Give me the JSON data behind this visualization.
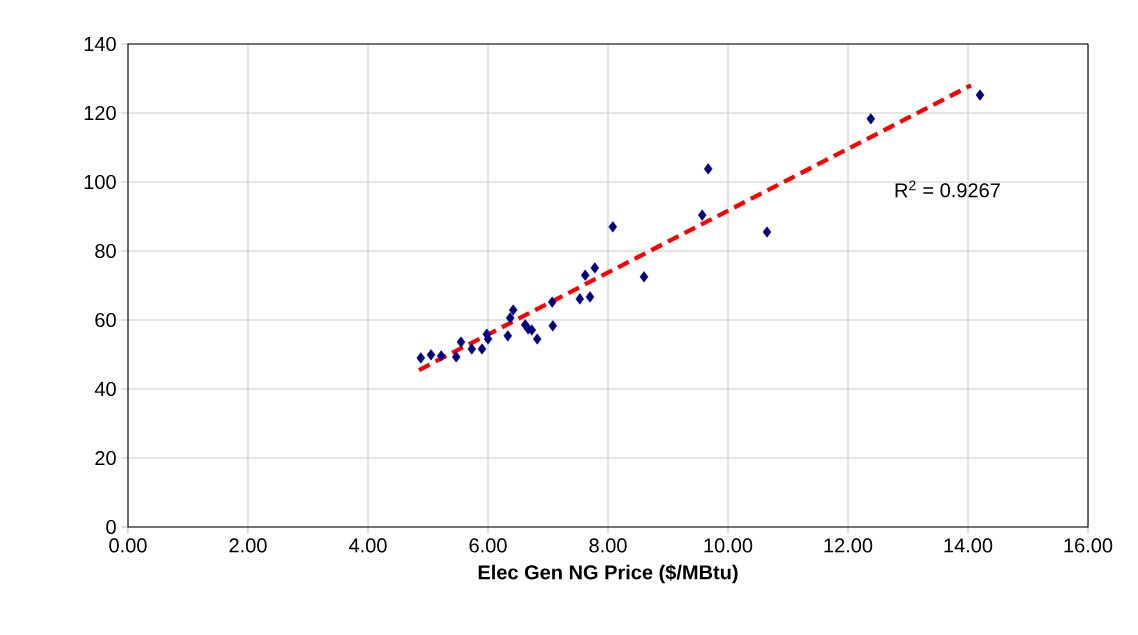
{
  "chart_data": {
    "type": "scatter",
    "xlabel": "Elec Gen NG Price ($/MBtu)",
    "xlim": [
      0,
      16
    ],
    "xticks": [
      {
        "value": 0,
        "label": "0.00"
      },
      {
        "value": 2,
        "label": "2.00"
      },
      {
        "value": 4,
        "label": "4.00"
      },
      {
        "value": 6,
        "label": "6.00"
      },
      {
        "value": 8,
        "label": "8.00"
      },
      {
        "value": 10,
        "label": "10.00"
      },
      {
        "value": 12,
        "label": "12.00"
      },
      {
        "value": 14,
        "label": "14.00"
      },
      {
        "value": 16,
        "label": "16.00"
      }
    ],
    "ylim": [
      0,
      140
    ],
    "yticks": [
      0,
      20,
      40,
      60,
      80,
      100,
      120,
      140
    ],
    "grid": true,
    "series": [
      {
        "color": "#000080",
        "marker": "diamond",
        "x": [
          4.88,
          5.05,
          5.22,
          5.47,
          5.55,
          5.73,
          5.9,
          5.98,
          6.0,
          6.33,
          6.42,
          6.37,
          6.62,
          6.67,
          6.73,
          6.82,
          7.08,
          7.07,
          7.53,
          7.7,
          7.62,
          7.78,
          8.08,
          8.6,
          9.57,
          9.67,
          10.65,
          12.38,
          14.2
        ],
        "values": [
          49.0,
          49.9,
          49.6,
          49.3,
          53.6,
          51.6,
          51.6,
          55.9,
          54.5,
          55.4,
          62.9,
          60.6,
          58.6,
          57.4,
          57.1,
          54.5,
          58.3,
          65.2,
          66.1,
          66.7,
          73.0,
          75.1,
          87.0,
          72.5,
          90.4,
          103.8,
          85.5,
          118.3,
          125.2
        ]
      },
      {
        "type": "line",
        "color": "#ff0000",
        "line_style": "dashed",
        "marker": "none",
        "x": [
          4.85,
          14.05
        ],
        "values": [
          45.5,
          128.0
        ]
      }
    ],
    "annotations": [
      "R$^{2}$ = 0.9267"
    ]
  }
}
